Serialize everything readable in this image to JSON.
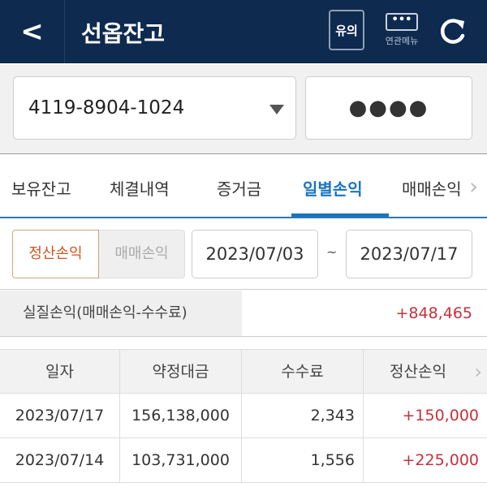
{
  "header": {
    "title": "선옵잔고",
    "notice_label": "유의",
    "menu_label": "연관메뉴",
    "menu_icon": "ellipsis-icon",
    "back_icon": "chevron-left-icon",
    "refresh_icon": "refresh-icon"
  },
  "account": {
    "number": "4119-8904-1024",
    "password_mask": "●●●●"
  },
  "tabs": [
    {
      "label": "보유잔고"
    },
    {
      "label": "체결내역"
    },
    {
      "label": "증거금"
    },
    {
      "label": "일별손익",
      "active": true
    },
    {
      "label": "매매손익"
    }
  ],
  "filter": {
    "type_options": [
      "정산손익",
      "매매손익"
    ],
    "selected": "정산손익",
    "start_date": "2023/07/03",
    "separator": "~",
    "end_date": "2023/07/17"
  },
  "summary": {
    "label": "실질손익(매매손익-수수료)",
    "value": "+848,465"
  },
  "table": {
    "columns": [
      "일자",
      "약정대금",
      "수수료",
      "정산손익"
    ],
    "rows": [
      [
        "2023/07/17",
        "156,138,000",
        "2,343",
        "+150,000"
      ],
      [
        "2023/07/14",
        "103,731,000",
        "1,556",
        "+225,000"
      ]
    ]
  },
  "colors": {
    "header_bg": "#0e2a4f",
    "accent": "#1a74bf",
    "positive": "#c8303a",
    "selected_toggle": "#d2541e"
  }
}
